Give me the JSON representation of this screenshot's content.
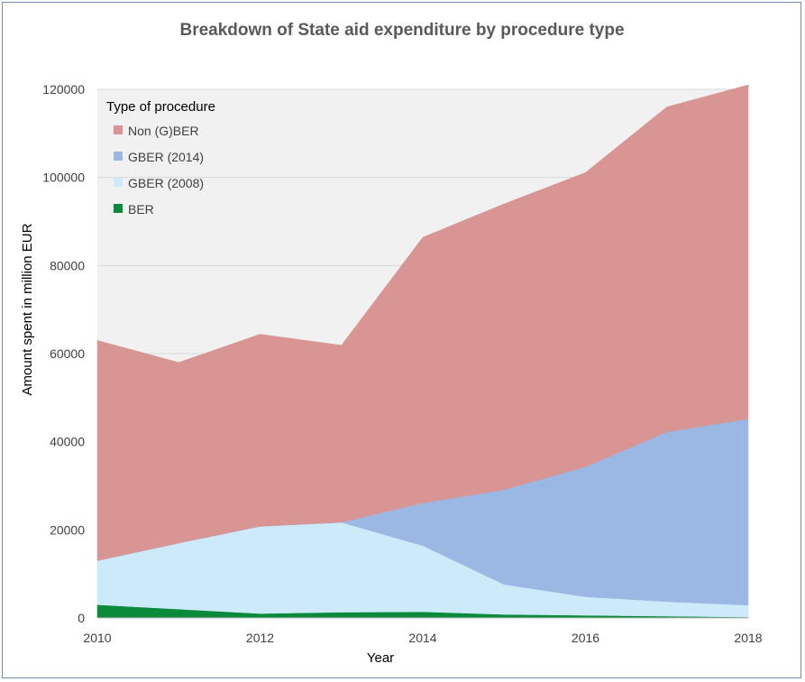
{
  "chart_data": {
    "type": "area",
    "stacked": true,
    "title": "Breakdown of State aid expenditure by procedure type",
    "xlabel": "Year",
    "ylabel": "Amount spent in million EUR",
    "xlim": [
      2010,
      2018
    ],
    "ylim": [
      0,
      120000
    ],
    "x": [
      2010,
      2011,
      2012,
      2013,
      2014,
      2015,
      2016,
      2017,
      2018
    ],
    "x_ticks": [
      "2010",
      "2012",
      "2014",
      "2016",
      "2018"
    ],
    "y_ticks": [
      "0",
      "20000",
      "40000",
      "60000",
      "80000",
      "100000",
      "120000"
    ],
    "grid": true,
    "legend": {
      "title": "Type of procedure",
      "position": "top-left"
    },
    "series": [
      {
        "name": "BER",
        "color": "#0a8a3a",
        "values": [
          3000,
          2000,
          1000,
          1300,
          1400,
          800,
          600,
          400,
          200
        ]
      },
      {
        "name": "GBER (2008)",
        "color": "#cdeafb",
        "values": [
          10000,
          15000,
          19800,
          20400,
          15000,
          6800,
          4200,
          3300,
          2700
        ]
      },
      {
        "name": "GBER (2014)",
        "color": "#9bb8e4",
        "values": [
          0,
          0,
          0,
          0,
          9700,
          21500,
          29500,
          38500,
          42300
        ]
      },
      {
        "name": "Non (G)BER",
        "color": "#d89594",
        "values": [
          50000,
          41000,
          43600,
          40200,
          60300,
          64900,
          66800,
          73800,
          75800
        ]
      }
    ],
    "legend_order": [
      "Non (G)BER",
      "GBER (2014)",
      "GBER (2008)",
      "BER"
    ],
    "plot_background": "#f1f1f1"
  }
}
